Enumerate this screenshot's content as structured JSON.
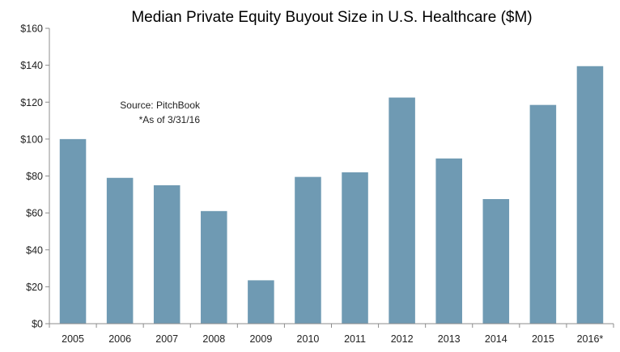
{
  "chart_data": {
    "type": "bar",
    "title": "Median Private Equity Buyout Size in U.S. Healthcare ($M)",
    "xlabel": "",
    "ylabel": "",
    "categories": [
      "2005",
      "2006",
      "2007",
      "2008",
      "2009",
      "2010",
      "2011",
      "2012",
      "2013",
      "2014",
      "2015",
      "2016*"
    ],
    "values": [
      100,
      79,
      75,
      61,
      23.5,
      79.5,
      82,
      122.5,
      89.5,
      67.5,
      118.5,
      139.5
    ],
    "ylim": [
      0,
      160
    ],
    "yticks": [
      0,
      20,
      40,
      60,
      80,
      100,
      120,
      140,
      160
    ],
    "ytick_labels": [
      "$0",
      "$20",
      "$40",
      "$60",
      "$80",
      "$100",
      "$120",
      "$140",
      "$160"
    ],
    "bar_color": "#6f9ab3",
    "grid": false,
    "legend": "none",
    "annotations": [
      "Source: PitchBook",
      "*As of 3/31/16"
    ]
  }
}
